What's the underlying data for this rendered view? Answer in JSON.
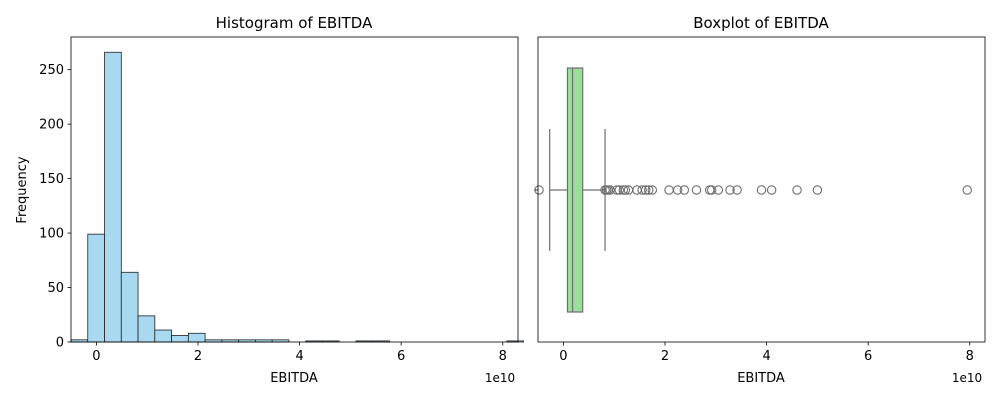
{
  "chart_data": [
    {
      "type": "histogram",
      "title": "Histogram of EBITDA",
      "xlabel": "EBITDA",
      "ylabel": "Frequency",
      "x_scale_label": "1e10",
      "xlim": [
        -0.5,
        8.3
      ],
      "ylim": [
        0,
        280
      ],
      "x_ticks": [
        0,
        2,
        4,
        6,
        8
      ],
      "x_tick_labels": [
        "0",
        "2",
        "4",
        "6",
        "8"
      ],
      "y_ticks": [
        0,
        50,
        100,
        150,
        200,
        250
      ],
      "y_tick_labels": [
        "0",
        "50",
        "100",
        "150",
        "200",
        "250"
      ],
      "grid": false,
      "bar_color": "#a9d9f1",
      "edge_color": "#222222",
      "bins": [
        {
          "x0": -0.5,
          "x1": -0.17,
          "count": 2
        },
        {
          "x0": -0.17,
          "x1": 0.16,
          "count": 99
        },
        {
          "x0": 0.16,
          "x1": 0.49,
          "count": 266
        },
        {
          "x0": 0.49,
          "x1": 0.82,
          "count": 64
        },
        {
          "x0": 0.82,
          "x1": 1.15,
          "count": 24
        },
        {
          "x0": 1.15,
          "x1": 1.48,
          "count": 11
        },
        {
          "x0": 1.48,
          "x1": 1.81,
          "count": 6
        },
        {
          "x0": 1.81,
          "x1": 2.14,
          "count": 8
        },
        {
          "x0": 2.14,
          "x1": 2.47,
          "count": 2
        },
        {
          "x0": 2.47,
          "x1": 2.8,
          "count": 2
        },
        {
          "x0": 2.8,
          "x1": 3.13,
          "count": 2
        },
        {
          "x0": 3.13,
          "x1": 3.46,
          "count": 2
        },
        {
          "x0": 3.46,
          "x1": 3.79,
          "count": 2
        },
        {
          "x0": 3.79,
          "x1": 4.12,
          "count": 0
        },
        {
          "x0": 4.12,
          "x1": 4.45,
          "count": 1
        },
        {
          "x0": 4.45,
          "x1": 4.78,
          "count": 1
        },
        {
          "x0": 4.78,
          "x1": 5.11,
          "count": 0
        },
        {
          "x0": 5.11,
          "x1": 5.44,
          "count": 1
        },
        {
          "x0": 5.44,
          "x1": 5.77,
          "count": 1
        },
        {
          "x0": 5.77,
          "x1": 6.1,
          "count": 0
        },
        {
          "x0": 6.1,
          "x1": 6.43,
          "count": 0
        },
        {
          "x0": 6.43,
          "x1": 6.76,
          "count": 0
        },
        {
          "x0": 6.76,
          "x1": 7.09,
          "count": 0
        },
        {
          "x0": 7.09,
          "x1": 7.42,
          "count": 0
        },
        {
          "x0": 7.42,
          "x1": 7.75,
          "count": 0
        },
        {
          "x0": 7.75,
          "x1": 8.08,
          "count": 0
        },
        {
          "x0": 8.08,
          "x1": 8.41,
          "count": 1
        }
      ]
    },
    {
      "type": "boxplot",
      "title": "Boxplot of EBITDA",
      "xlabel": "EBITDA",
      "x_scale_label": "1e10",
      "xlim": [
        -0.5,
        8.3
      ],
      "x_ticks": [
        0,
        2,
        4,
        6,
        8
      ],
      "x_tick_labels": [
        "0",
        "2",
        "4",
        "6",
        "8"
      ],
      "grid": false,
      "box_color": "#98e09a",
      "line_color": "#6f6f6f",
      "whisker_low": -0.27,
      "q1": 0.08,
      "median": 0.18,
      "q3": 0.38,
      "whisker_high": 0.82,
      "outliers": [
        -0.48,
        0.82,
        0.85,
        0.88,
        0.92,
        1.05,
        1.1,
        1.18,
        1.22,
        1.28,
        1.45,
        1.55,
        1.62,
        1.68,
        1.75,
        2.08,
        2.25,
        2.38,
        2.62,
        2.88,
        2.92,
        3.05,
        3.28,
        3.42,
        3.9,
        4.1,
        4.6,
        5.0,
        7.95
      ]
    }
  ]
}
